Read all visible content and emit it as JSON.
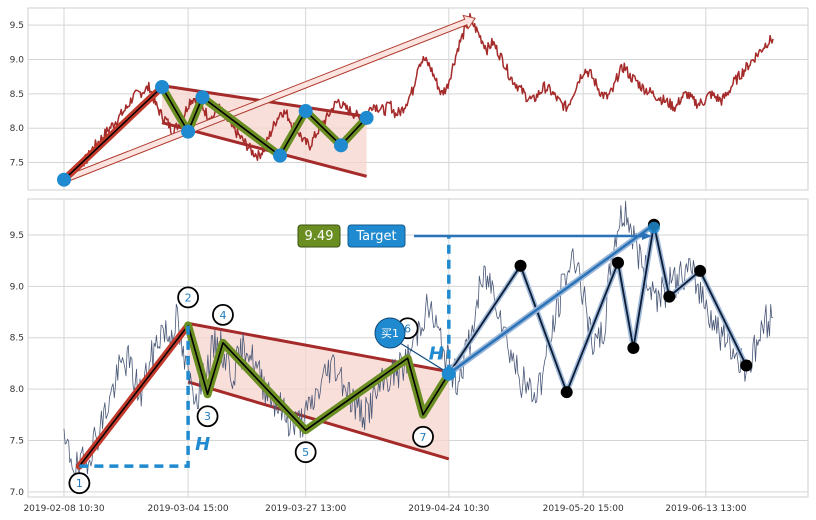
{
  "chart_data": [
    {
      "type": "line",
      "panel": "top",
      "title": "",
      "xlabel": "",
      "ylabel": "",
      "ylim": [
        7.1,
        9.75
      ],
      "y_ticks": [
        "7.5",
        "8.0",
        "8.5",
        "9.0",
        "9.5"
      ],
      "grid": true,
      "series": [
        {
          "color": "#a52a2a",
          "x_range": [
            "2019-02-08 10:30",
            "2019-06-26 15:00"
          ],
          "values": [
            7.25,
            7.3,
            7.4,
            7.5,
            7.55,
            7.7,
            7.8,
            7.9,
            8.0,
            8.1,
            8.2,
            8.3,
            8.45,
            8.5,
            8.55,
            8.6,
            8.35,
            8.2,
            8.1,
            7.95,
            8.05,
            8.2,
            8.4,
            8.45,
            8.35,
            8.2,
            8.15,
            8.3,
            8.2,
            8.05,
            7.95,
            7.85,
            7.75,
            7.65,
            7.6,
            7.7,
            7.9,
            8.1,
            8.25,
            8.2,
            8.05,
            7.95,
            7.8,
            7.75,
            7.9,
            8.05,
            8.15,
            8.3,
            8.4,
            8.3,
            8.25,
            8.2,
            8.1,
            8.2,
            8.35,
            8.3,
            8.25,
            8.35,
            8.2,
            8.25,
            8.4,
            8.55,
            8.95,
            9.0,
            8.9,
            8.7,
            8.5,
            8.6,
            8.9,
            9.2,
            9.4,
            9.6,
            9.45,
            9.3,
            9.15,
            9.25,
            9.1,
            8.95,
            8.75,
            8.65,
            8.55,
            8.45,
            8.4,
            8.5,
            8.6,
            8.55,
            8.45,
            8.35,
            8.3,
            8.5,
            8.7,
            8.85,
            8.8,
            8.65,
            8.5,
            8.45,
            8.55,
            8.8,
            8.9,
            8.75,
            8.7,
            8.6,
            8.55,
            8.5,
            8.45,
            8.4,
            8.35,
            8.3,
            8.45,
            8.5,
            8.4,
            8.35,
            8.4,
            8.5,
            8.45,
            8.4,
            8.5,
            8.65,
            8.75,
            8.85,
            8.95,
            9.05,
            9.15,
            9.25,
            9.3
          ]
        }
      ],
      "pattern": [
        {
          "date": "2019-02-08 10:30",
          "value": 7.25
        },
        {
          "date": "2019-02-27 13:00",
          "value": 8.6
        },
        {
          "date": "2019-03-04 15:00",
          "value": 7.95
        },
        {
          "date": "2019-03-07 10:00",
          "value": 8.45
        },
        {
          "date": "2019-03-22 13:00",
          "value": 7.6
        },
        {
          "date": "2019-03-27 13:00",
          "value": 8.25
        },
        {
          "date": "2019-04-03 10:00",
          "value": 7.75
        },
        {
          "date": "2019-04-08 10:00",
          "value": 8.15
        }
      ],
      "channel": {
        "upper": [
          {
            "date": "2019-02-27 13:00",
            "value": 8.62
          },
          {
            "date": "2019-04-08 10:00",
            "value": 8.17
          }
        ],
        "lower": [
          {
            "date": "2019-02-27 13:00",
            "value": 8.08
          },
          {
            "date": "2019-04-08 10:00",
            "value": 7.3
          }
        ]
      },
      "target_arrow": {
        "from": {
          "date": "2019-02-08 10:30",
          "value": 7.25
        },
        "to": {
          "date": "2019-04-29 13:30",
          "value": 9.6
        }
      }
    },
    {
      "type": "line",
      "panel": "bottom",
      "title": "",
      "xlabel": "",
      "ylabel": "",
      "ylim": [
        6.95,
        9.85
      ],
      "y_ticks": [
        "7.0",
        "7.5",
        "8.0",
        "8.5",
        "9.0",
        "9.5"
      ],
      "x_ticks": [
        "2019-02-08 10:30",
        "2019-03-04 15:00",
        "2019-03-27 13:00",
        "2019-04-24 10:30",
        "2019-05-20 15:00",
        "2019-06-13 13:00"
      ],
      "grid": true,
      "series": [
        {
          "color": "#4a5878",
          "x_range": [
            "2019-02-08 10:30",
            "2019-06-26 15:00"
          ],
          "values": [
            7.45,
            7.35,
            7.2,
            7.3,
            7.45,
            7.6,
            7.8,
            8.0,
            8.2,
            8.3,
            8.1,
            7.95,
            8.2,
            8.4,
            8.6,
            8.5,
            8.7,
            8.3,
            8.05,
            7.95,
            8.1,
            8.35,
            8.45,
            8.3,
            8.15,
            8.3,
            8.45,
            8.25,
            8.1,
            8.0,
            7.9,
            7.8,
            7.7,
            7.65,
            7.7,
            7.8,
            7.95,
            8.1,
            8.25,
            8.2,
            8.05,
            7.9,
            7.8,
            7.75,
            7.9,
            8.0,
            8.1,
            8.15,
            8.2,
            8.3,
            8.5,
            8.7,
            8.8,
            8.6,
            8.4,
            8.2,
            8.1,
            8.3,
            8.5,
            8.9,
            9.1,
            9.0,
            8.8,
            8.5,
            8.3,
            8.1,
            8.0,
            7.95,
            8.1,
            8.4,
            8.7,
            9.0,
            9.2,
            9.3,
            8.9,
            8.5,
            8.4,
            8.6,
            9.3,
            9.6,
            9.75,
            9.5,
            9.3,
            9.1,
            8.95,
            8.9,
            9.0,
            9.05,
            9.1,
            9.15,
            9.05,
            8.9,
            8.75,
            8.6,
            8.5,
            8.4,
            8.3,
            8.25,
            8.3,
            8.5,
            8.65,
            8.7
          ]
        }
      ],
      "pattern": [
        {
          "date": "2019-02-11 10:30",
          "value": 7.25,
          "label": "1"
        },
        {
          "date": "2019-03-04 15:00",
          "value": 8.62,
          "label": "2"
        },
        {
          "date": "2019-03-08 10:00",
          "value": 7.95,
          "label": "3"
        },
        {
          "date": "2019-03-11 10:00",
          "value": 8.45,
          "label": "4"
        },
        {
          "date": "2019-03-27 13:00",
          "value": 7.6,
          "label": "5"
        },
        {
          "date": "2019-04-16 10:00",
          "value": 8.3,
          "label": "6"
        },
        {
          "date": "2019-04-19 10:00",
          "value": 7.75,
          "label": "7"
        },
        {
          "date": "2019-04-24 10:30",
          "value": 8.15
        }
      ],
      "channel": {
        "upper": [
          {
            "date": "2019-03-04 15:00",
            "value": 8.64
          },
          {
            "date": "2019-04-24 10:30",
            "value": 8.17
          }
        ],
        "lower": [
          {
            "date": "2019-03-04 15:00",
            "value": 8.07
          },
          {
            "date": "2019-04-24 10:30",
            "value": 7.32
          }
        ]
      },
      "projection": [
        {
          "date": "2019-04-24 10:30",
          "value": 8.15
        },
        {
          "date": "2019-05-08 10:00",
          "value": 9.2
        },
        {
          "date": "2019-05-17 10:00",
          "value": 7.97
        },
        {
          "date": "2019-05-27 10:00",
          "value": 9.23
        },
        {
          "date": "2019-05-30 10:00",
          "value": 8.4
        },
        {
          "date": "2019-06-03 10:00",
          "value": 9.6
        },
        {
          "date": "2019-06-06 10:00",
          "value": 8.9
        },
        {
          "date": "2019-06-12 10:00",
          "value": 9.15
        },
        {
          "date": "2019-06-21 10:00",
          "value": 8.23
        }
      ],
      "annotations": {
        "target_value": "9.49",
        "target_label": "Target",
        "buy_label": "买1",
        "height_label": "H",
        "buy_height_label": "H"
      }
    }
  ],
  "colors": {
    "price_top": "#a52a2a",
    "price_bottom": "#4a5878",
    "channel": "#a52a2a",
    "channel_fill": "#f7d4cc",
    "pattern_stroke": "#6b8e23",
    "pattern_inner": "#000000",
    "rise": "#c0392b",
    "marker_blue": "#1f8ad0",
    "grid": "#d5d5d5",
    "value_box": "#6b8e23",
    "target_box": "#1f8ad0",
    "arrow_blue": "#2a73b8"
  }
}
